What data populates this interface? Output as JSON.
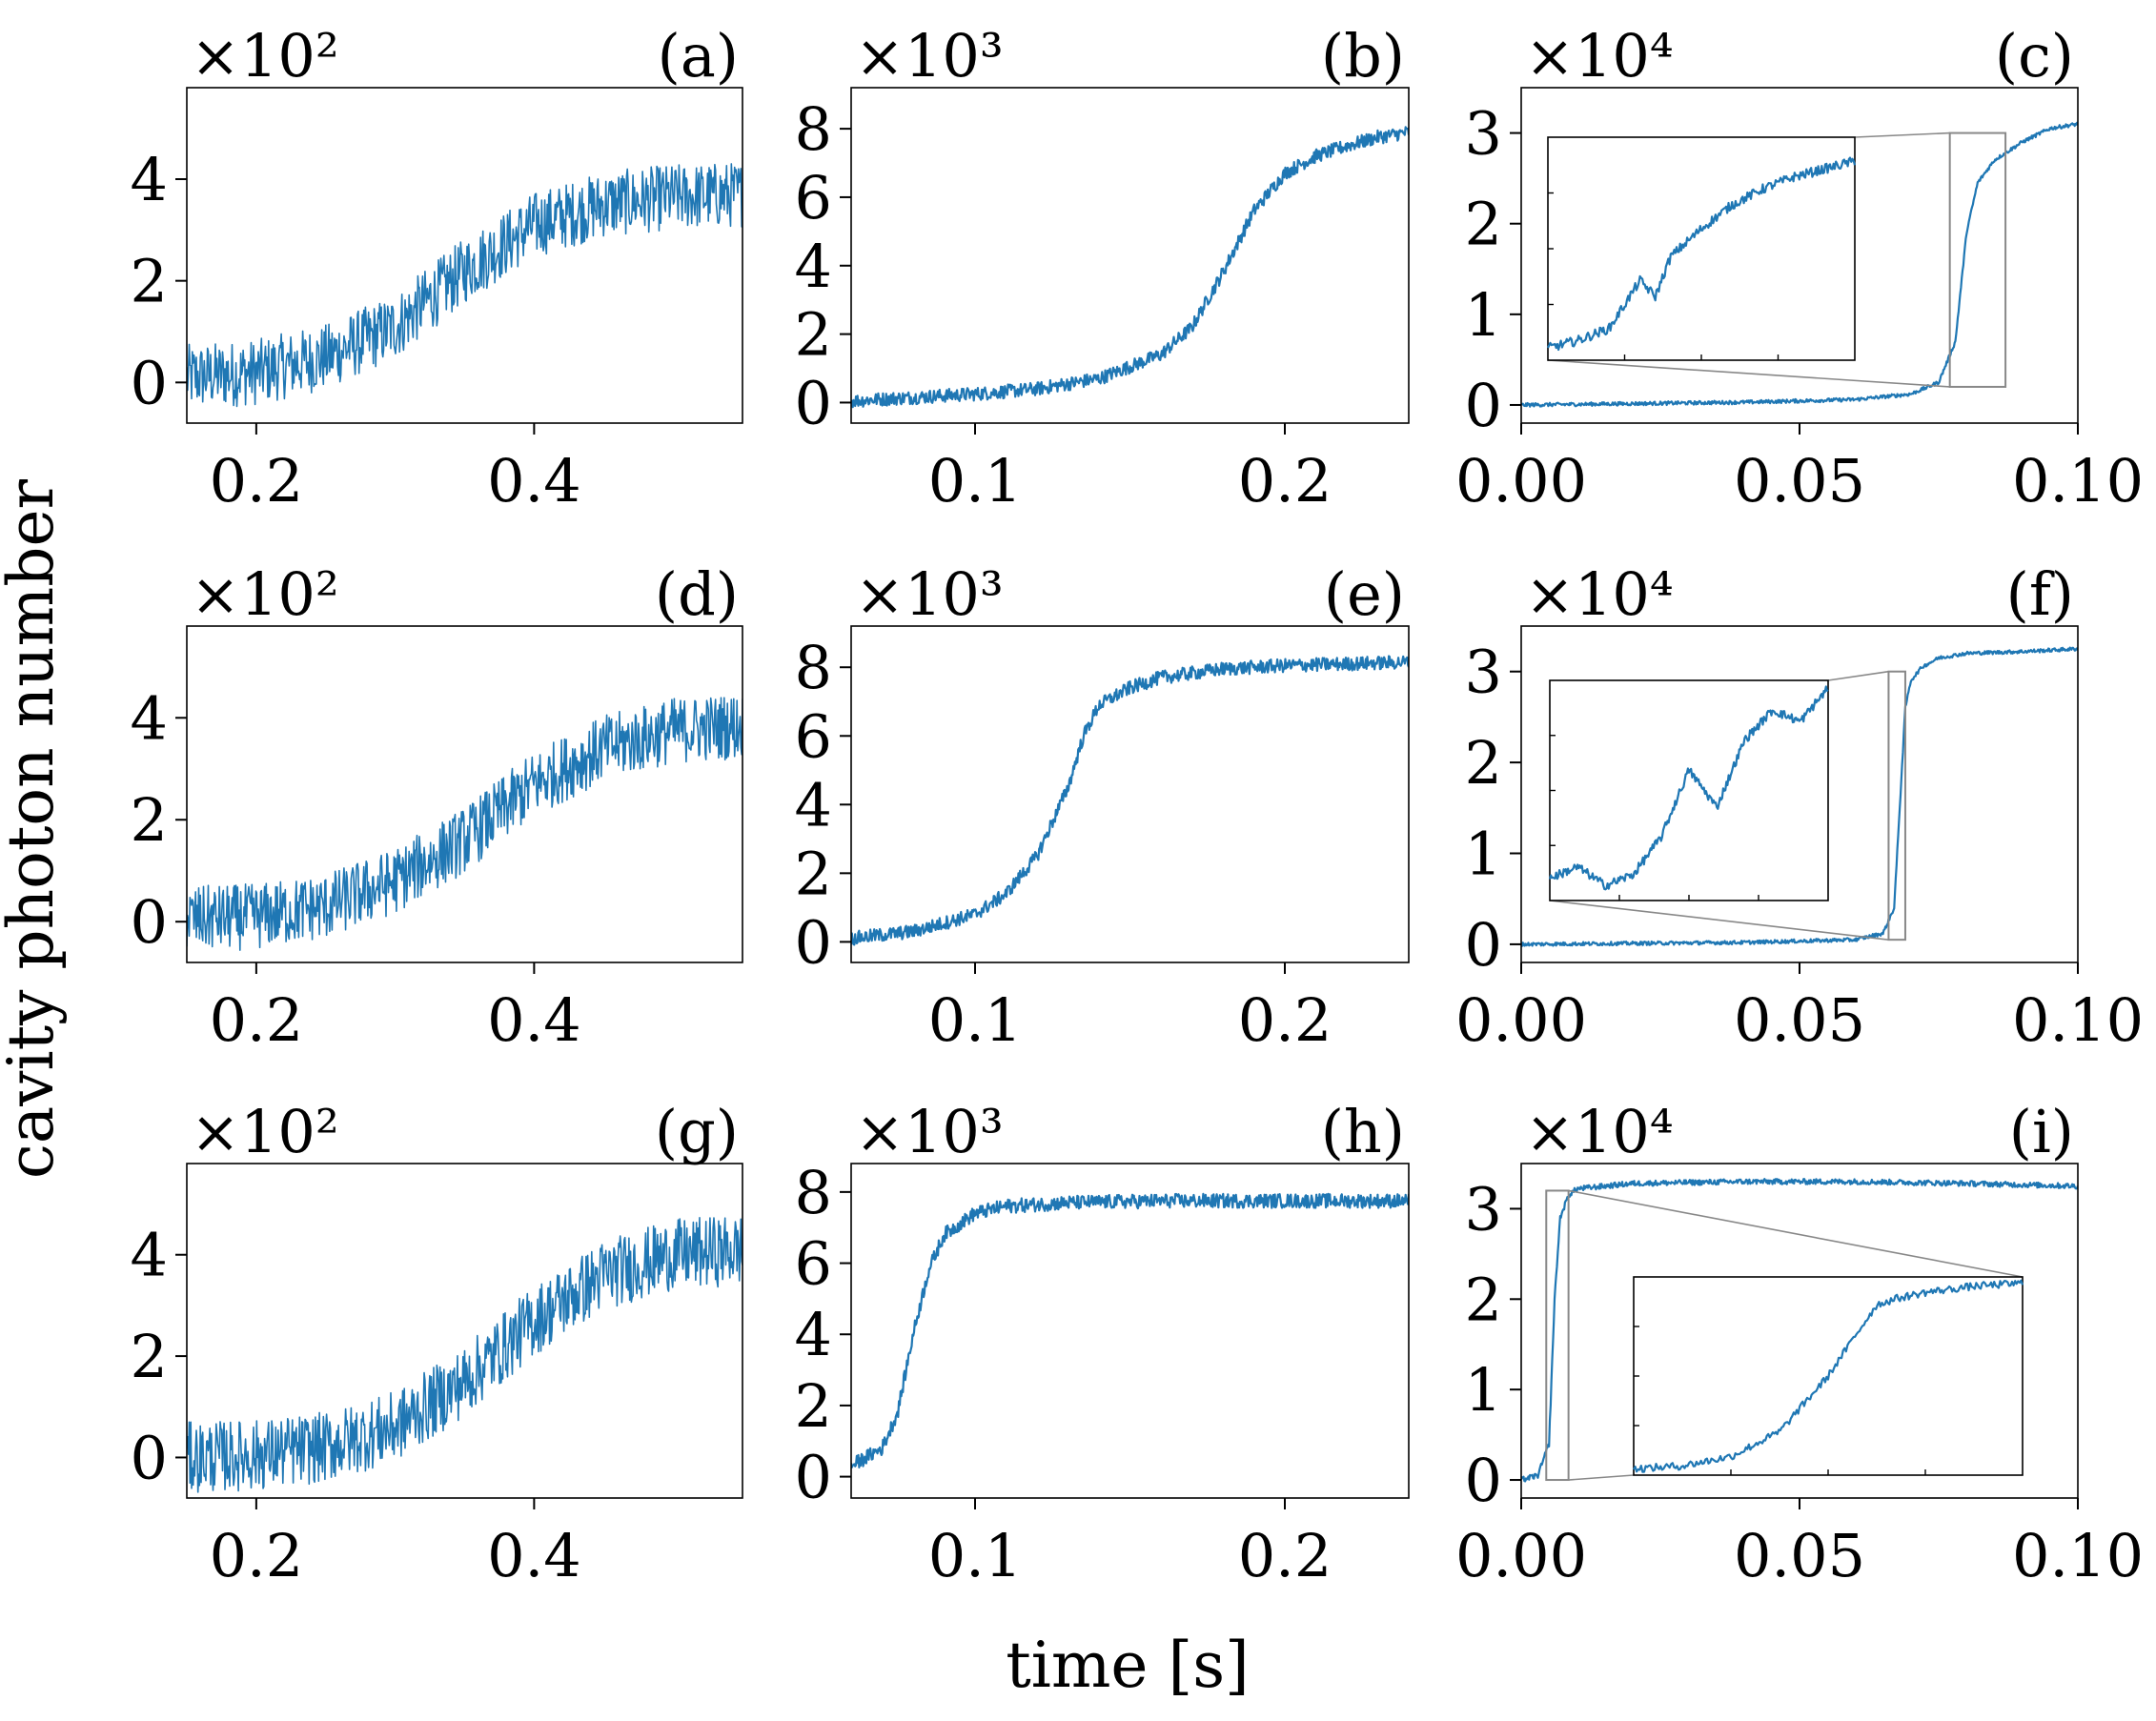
{
  "figure": {
    "xlabel": "time [s]",
    "ylabel": "cavity photon number",
    "series_color": "#1f77b4",
    "zoom_color": "#888888"
  },
  "chart_data": [
    {
      "id": "a",
      "panel_label": "(a)",
      "type": "line",
      "scale_text": "×10²",
      "multiplier": 100,
      "xlim": [
        0.15,
        0.55
      ],
      "ylim": [
        -0.8,
        5.8
      ],
      "xticks": [
        0.2,
        0.4
      ],
      "xtick_labels": [
        "0.2",
        "0.4"
      ],
      "yticks": [
        0,
        2,
        4
      ],
      "ytick_labels": [
        "0",
        "2",
        "4"
      ],
      "x": [
        0.15,
        0.2,
        0.25,
        0.3,
        0.35,
        0.4,
        0.45,
        0.5,
        0.55
      ],
      "y": [
        0.1,
        0.2,
        0.5,
        1.1,
        2.2,
        3.1,
        3.5,
        3.65,
        3.7
      ],
      "noise": 0.65
    },
    {
      "id": "b",
      "panel_label": "(b)",
      "type": "line",
      "scale_text": "×10³",
      "multiplier": 1000,
      "xlim": [
        0.06,
        0.24
      ],
      "ylim": [
        -0.6,
        9.2
      ],
      "xticks": [
        0.1,
        0.2
      ],
      "xtick_labels": [
        "0.1",
        "0.2"
      ],
      "yticks": [
        0,
        2,
        4,
        6,
        8
      ],
      "ytick_labels": [
        "0",
        "2",
        "4",
        "6",
        "8"
      ],
      "x": [
        0.06,
        0.08,
        0.1,
        0.12,
        0.14,
        0.16,
        0.17,
        0.18,
        0.19,
        0.2,
        0.21,
        0.22,
        0.23,
        0.24
      ],
      "y": [
        0.05,
        0.15,
        0.25,
        0.4,
        0.7,
        1.4,
        2.2,
        3.8,
        5.6,
        6.7,
        7.2,
        7.5,
        7.75,
        7.9
      ],
      "noise": 0.2
    },
    {
      "id": "c",
      "panel_label": "(c)",
      "type": "line",
      "scale_text": "×10⁴",
      "multiplier": 10000,
      "xlim": [
        0.0,
        0.1
      ],
      "ylim": [
        -0.2,
        3.5
      ],
      "xticks": [
        0.0,
        0.05,
        0.1
      ],
      "xtick_labels": [
        "0.00",
        "0.05",
        "0.10"
      ],
      "yticks": [
        0,
        1,
        2,
        3
      ],
      "ytick_labels": [
        "0",
        "1",
        "2",
        "3"
      ],
      "x": [
        0.0,
        0.04,
        0.06,
        0.07,
        0.075,
        0.078,
        0.08,
        0.082,
        0.085,
        0.09,
        0.095,
        0.1
      ],
      "y": [
        0.0,
        0.03,
        0.06,
        0.12,
        0.25,
        0.7,
        1.9,
        2.45,
        2.7,
        2.9,
        3.05,
        3.1
      ],
      "noise": 0.02,
      "inset": {
        "zoom_x": [
          0.077,
          0.087
        ],
        "zoom_y": [
          0.2,
          3.0
        ],
        "x": [
          0.077,
          0.078,
          0.079,
          0.0795,
          0.08,
          0.0805,
          0.081,
          0.082,
          0.083,
          0.084,
          0.085,
          0.086,
          0.087
        ],
        "y": [
          0.35,
          0.45,
          0.6,
          0.9,
          1.2,
          1.0,
          1.5,
          1.85,
          2.15,
          2.35,
          2.5,
          2.6,
          2.7
        ]
      }
    },
    {
      "id": "d",
      "panel_label": "(d)",
      "type": "line",
      "scale_text": "×10²",
      "multiplier": 100,
      "xlim": [
        0.15,
        0.55
      ],
      "ylim": [
        -0.8,
        5.8
      ],
      "xticks": [
        0.2,
        0.4
      ],
      "xtick_labels": [
        "0.2",
        "0.4"
      ],
      "yticks": [
        0,
        2,
        4
      ],
      "ytick_labels": [
        "0",
        "2",
        "4"
      ],
      "x": [
        0.15,
        0.2,
        0.25,
        0.3,
        0.35,
        0.4,
        0.45,
        0.5,
        0.55
      ],
      "y": [
        0.05,
        0.1,
        0.3,
        0.8,
        1.6,
        2.7,
        3.4,
        3.75,
        3.85
      ],
      "noise": 0.65
    },
    {
      "id": "e",
      "panel_label": "(e)",
      "type": "line",
      "scale_text": "×10³",
      "multiplier": 1000,
      "xlim": [
        0.06,
        0.24
      ],
      "ylim": [
        -0.6,
        9.2
      ],
      "xticks": [
        0.1,
        0.2
      ],
      "xtick_labels": [
        "0.1",
        "0.2"
      ],
      "yticks": [
        0,
        2,
        4,
        6,
        8
      ],
      "ytick_labels": [
        "0",
        "2",
        "4",
        "6",
        "8"
      ],
      "x": [
        0.06,
        0.08,
        0.1,
        0.11,
        0.12,
        0.13,
        0.135,
        0.14,
        0.15,
        0.16,
        0.18,
        0.2,
        0.22,
        0.24
      ],
      "y": [
        0.1,
        0.3,
        0.8,
        1.4,
        2.5,
        4.5,
        6.0,
        6.9,
        7.4,
        7.7,
        7.95,
        8.05,
        8.1,
        8.15
      ],
      "noise": 0.2
    },
    {
      "id": "f",
      "panel_label": "(f)",
      "type": "line",
      "scale_text": "×10⁴",
      "multiplier": 10000,
      "xlim": [
        0.0,
        0.1
      ],
      "ylim": [
        -0.2,
        3.5
      ],
      "xticks": [
        0.0,
        0.05,
        0.1
      ],
      "xtick_labels": [
        "0.00",
        "0.05",
        "0.10"
      ],
      "yticks": [
        0,
        1,
        2,
        3
      ],
      "ytick_labels": [
        "0",
        "1",
        "2",
        "3"
      ],
      "x": [
        0.0,
        0.04,
        0.06,
        0.065,
        0.067,
        0.068,
        0.069,
        0.07,
        0.072,
        0.075,
        0.08,
        0.09,
        0.1
      ],
      "y": [
        0.0,
        0.02,
        0.05,
        0.12,
        0.4,
        1.5,
        2.6,
        2.9,
        3.05,
        3.15,
        3.2,
        3.22,
        3.25
      ],
      "noise": 0.02,
      "inset": {
        "zoom_x": [
          0.066,
          0.069
        ],
        "zoom_y": [
          0.05,
          3.0
        ],
        "x": [
          0.066,
          0.0663,
          0.0666,
          0.0669,
          0.0672,
          0.0675,
          0.0678,
          0.0681,
          0.0684,
          0.0687,
          0.069
        ],
        "y": [
          0.35,
          0.5,
          0.25,
          0.4,
          0.9,
          1.8,
          1.3,
          2.2,
          2.6,
          2.45,
          2.9
        ]
      }
    },
    {
      "id": "g",
      "panel_label": "(g)",
      "type": "line",
      "scale_text": "×10²",
      "multiplier": 100,
      "xlim": [
        0.15,
        0.55
      ],
      "ylim": [
        -0.8,
        5.8
      ],
      "xticks": [
        0.2,
        0.4
      ],
      "xtick_labels": [
        "0.2",
        "0.4"
      ],
      "yticks": [
        0,
        2,
        4
      ],
      "ytick_labels": [
        "0",
        "2",
        "4"
      ],
      "x": [
        0.15,
        0.2,
        0.25,
        0.3,
        0.35,
        0.4,
        0.45,
        0.5,
        0.55
      ],
      "y": [
        0.0,
        0.05,
        0.2,
        0.6,
        1.5,
        2.7,
        3.6,
        4.0,
        4.1
      ],
      "noise": 0.7
    },
    {
      "id": "h",
      "panel_label": "(h)",
      "type": "line",
      "scale_text": "×10³",
      "multiplier": 1000,
      "xlim": [
        0.06,
        0.24
      ],
      "ylim": [
        -0.6,
        8.8
      ],
      "xticks": [
        0.1,
        0.2
      ],
      "xtick_labels": [
        "0.1",
        "0.2"
      ],
      "yticks": [
        0,
        2,
        4,
        6,
        8
      ],
      "ytick_labels": [
        "0",
        "2",
        "4",
        "6",
        "8"
      ],
      "x": [
        0.06,
        0.07,
        0.075,
        0.08,
        0.085,
        0.09,
        0.1,
        0.11,
        0.13,
        0.16,
        0.2,
        0.24
      ],
      "y": [
        0.3,
        0.8,
        1.8,
        4.0,
        5.8,
        6.8,
        7.4,
        7.6,
        7.7,
        7.75,
        7.75,
        7.75
      ],
      "noise": 0.2
    },
    {
      "id": "i",
      "panel_label": "(i)",
      "type": "line",
      "scale_text": "×10⁴",
      "multiplier": 10000,
      "xlim": [
        0.0,
        0.1
      ],
      "ylim": [
        -0.2,
        3.5
      ],
      "xticks": [
        0.0,
        0.05,
        0.1
      ],
      "xtick_labels": [
        "0.00",
        "0.05",
        "0.10"
      ],
      "yticks": [
        0,
        1,
        2,
        3
      ],
      "ytick_labels": [
        "0",
        "1",
        "2",
        "3"
      ],
      "x": [
        0.0,
        0.003,
        0.005,
        0.006,
        0.007,
        0.0085,
        0.01,
        0.02,
        0.04,
        0.06,
        0.08,
        0.1
      ],
      "y": [
        0.0,
        0.05,
        0.4,
        2.0,
        2.9,
        3.15,
        3.22,
        3.28,
        3.3,
        3.3,
        3.28,
        3.25
      ],
      "noise": 0.03,
      "inset": {
        "zoom_x": [
          0.0045,
          0.0085
        ],
        "zoom_y": [
          0.0,
          3.2
        ],
        "x": [
          0.0045,
          0.005,
          0.0055,
          0.006,
          0.0065,
          0.0068,
          0.007,
          0.0072,
          0.0075,
          0.008,
          0.0085
        ],
        "y": [
          0.1,
          0.15,
          0.3,
          0.7,
          1.6,
          2.3,
          2.75,
          2.85,
          2.95,
          3.05,
          3.1
        ]
      }
    }
  ]
}
